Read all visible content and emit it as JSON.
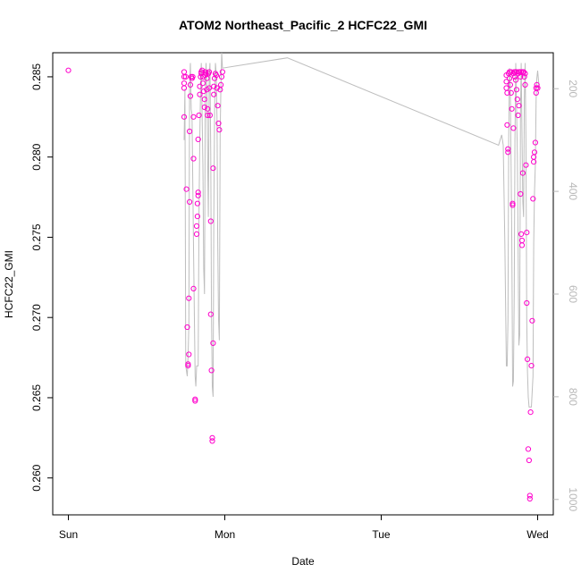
{
  "chart_data": {
    "type": "scatter",
    "title": "ATOM2 Northeast_Pacific_2 HCFC22_GMI",
    "xlabel": "Date",
    "ylabel": "HCFC22_GMI",
    "x_ticks": [
      {
        "label": "Sun",
        "value": 0
      },
      {
        "label": "Mon",
        "value": 1
      },
      {
        "label": "Tue",
        "value": 2
      },
      {
        "label": "Wed",
        "value": 3
      }
    ],
    "y_ticks": [
      0.26,
      0.265,
      0.27,
      0.275,
      0.28,
      0.285
    ],
    "y_tick_labels": [
      "0.260",
      "0.265",
      "0.270",
      "0.275",
      "0.280",
      "0.285"
    ],
    "right_ticks": [
      200,
      400,
      600,
      800,
      1000
    ],
    "right_tick_labels": [
      "200",
      "400",
      "600",
      "800",
      "1000"
    ],
    "xlim": [
      -0.1,
      3.1
    ],
    "ylim": [
      0.2577,
      0.2865
    ],
    "right_lim": [
      130,
      1030
    ],
    "points_color": "#ff00cc",
    "line_color": "#bebebe",
    "points": [
      [
        0.0,
        0.2854
      ],
      [
        0.74,
        0.2853
      ],
      [
        0.74,
        0.285
      ],
      [
        0.74,
        0.2846
      ],
      [
        0.74,
        0.2843
      ],
      [
        0.74,
        0.2825
      ],
      [
        0.75,
        0.285
      ],
      [
        0.755,
        0.278
      ],
      [
        0.76,
        0.2694
      ],
      [
        0.765,
        0.2671
      ],
      [
        0.765,
        0.267
      ],
      [
        0.77,
        0.2677
      ],
      [
        0.77,
        0.2712
      ],
      [
        0.775,
        0.2772
      ],
      [
        0.775,
        0.2816
      ],
      [
        0.78,
        0.2838
      ],
      [
        0.78,
        0.2845
      ],
      [
        0.785,
        0.285
      ],
      [
        0.79,
        0.2849
      ],
      [
        0.795,
        0.285
      ],
      [
        0.8,
        0.2825
      ],
      [
        0.8,
        0.2799
      ],
      [
        0.8,
        0.2718
      ],
      [
        0.81,
        0.2649
      ],
      [
        0.81,
        0.2648
      ],
      [
        0.82,
        0.2752
      ],
      [
        0.82,
        0.2757
      ],
      [
        0.825,
        0.2763
      ],
      [
        0.825,
        0.2771
      ],
      [
        0.83,
        0.2776
      ],
      [
        0.83,
        0.2778
      ],
      [
        0.83,
        0.2811
      ],
      [
        0.835,
        0.2826
      ],
      [
        0.84,
        0.2839
      ],
      [
        0.84,
        0.2844
      ],
      [
        0.845,
        0.285
      ],
      [
        0.85,
        0.2853
      ],
      [
        0.85,
        0.2852
      ],
      [
        0.855,
        0.2854
      ],
      [
        0.86,
        0.285
      ],
      [
        0.86,
        0.2846
      ],
      [
        0.865,
        0.2841
      ],
      [
        0.87,
        0.2836
      ],
      [
        0.87,
        0.2831
      ],
      [
        0.875,
        0.2853
      ],
      [
        0.875,
        0.2851
      ],
      [
        0.88,
        0.2852
      ],
      [
        0.885,
        0.2849
      ],
      [
        0.885,
        0.2842
      ],
      [
        0.89,
        0.283
      ],
      [
        0.89,
        0.2826
      ],
      [
        0.895,
        0.2852
      ],
      [
        0.9,
        0.2853
      ],
      [
        0.9,
        0.2843
      ],
      [
        0.905,
        0.2826
      ],
      [
        0.91,
        0.276
      ],
      [
        0.91,
        0.2702
      ],
      [
        0.915,
        0.2667
      ],
      [
        0.92,
        0.2623
      ],
      [
        0.92,
        0.2625
      ],
      [
        0.925,
        0.2684
      ],
      [
        0.925,
        0.2793
      ],
      [
        0.93,
        0.2839
      ],
      [
        0.93,
        0.2844
      ],
      [
        0.935,
        0.2849
      ],
      [
        0.94,
        0.2852
      ],
      [
        0.945,
        0.2851
      ],
      [
        0.95,
        0.2843
      ],
      [
        0.955,
        0.2832
      ],
      [
        0.96,
        0.2821
      ],
      [
        0.965,
        0.2817
      ],
      [
        0.97,
        0.2842
      ],
      [
        0.975,
        0.2845
      ],
      [
        0.98,
        0.285
      ],
      [
        0.985,
        0.2853
      ],
      [
        2.8,
        0.2851
      ],
      [
        2.8,
        0.2847
      ],
      [
        2.8,
        0.2843
      ],
      [
        2.805,
        0.284
      ],
      [
        2.805,
        0.282
      ],
      [
        2.81,
        0.2803
      ],
      [
        2.81,
        0.2805
      ],
      [
        2.815,
        0.2852
      ],
      [
        2.82,
        0.2849
      ],
      [
        2.825,
        0.2845
      ],
      [
        2.83,
        0.284
      ],
      [
        2.835,
        0.283
      ],
      [
        2.84,
        0.2771
      ],
      [
        2.84,
        0.277
      ],
      [
        2.845,
        0.2818
      ],
      [
        2.85,
        0.2853
      ],
      [
        2.855,
        0.285
      ],
      [
        2.86,
        0.2848
      ],
      [
        2.865,
        0.2842
      ],
      [
        2.87,
        0.2836
      ],
      [
        2.875,
        0.2826
      ],
      [
        2.88,
        0.2832
      ],
      [
        2.885,
        0.2853
      ],
      [
        2.89,
        0.285
      ],
      [
        2.89,
        0.2777
      ],
      [
        2.895,
        0.2752
      ],
      [
        2.9,
        0.2748
      ],
      [
        2.9,
        0.2745
      ],
      [
        2.905,
        0.279
      ],
      [
        2.91,
        0.2853
      ],
      [
        2.915,
        0.285
      ],
      [
        2.92,
        0.2845
      ],
      [
        2.925,
        0.2795
      ],
      [
        2.93,
        0.2753
      ],
      [
        2.93,
        0.2709
      ],
      [
        2.935,
        0.2674
      ],
      [
        2.94,
        0.2618
      ],
      [
        2.945,
        0.2611
      ],
      [
        2.95,
        0.2589
      ],
      [
        2.95,
        0.2587
      ],
      [
        2.955,
        0.2641
      ],
      [
        2.96,
        0.267
      ],
      [
        2.965,
        0.2698
      ],
      [
        2.97,
        0.2774
      ],
      [
        2.975,
        0.2797
      ],
      [
        2.975,
        0.28
      ],
      [
        2.98,
        0.2803
      ],
      [
        2.985,
        0.2809
      ],
      [
        2.99,
        0.284
      ],
      [
        2.99,
        0.2843
      ],
      [
        2.995,
        0.2845
      ],
      [
        3.0,
        0.2843
      ],
      [
        2.82,
        0.2853
      ],
      [
        2.83,
        0.2853
      ],
      [
        2.845,
        0.2852
      ],
      [
        2.855,
        0.2853
      ],
      [
        2.865,
        0.2853
      ],
      [
        2.875,
        0.2852
      ],
      [
        2.88,
        0.2853
      ],
      [
        2.895,
        0.2853
      ],
      [
        2.905,
        0.2853
      ],
      [
        2.92,
        0.2852
      ]
    ],
    "line": [
      [
        0.74,
        300
      ],
      [
        0.745,
        200
      ],
      [
        0.75,
        740
      ],
      [
        0.76,
        760
      ],
      [
        0.765,
        720
      ],
      [
        0.77,
        660
      ],
      [
        0.775,
        200
      ],
      [
        0.78,
        150
      ],
      [
        0.785,
        240
      ],
      [
        0.79,
        250
      ],
      [
        0.8,
        510
      ],
      [
        0.81,
        760
      ],
      [
        0.815,
        780
      ],
      [
        0.82,
        740
      ],
      [
        0.83,
        740
      ],
      [
        0.835,
        450
      ],
      [
        0.84,
        300
      ],
      [
        0.845,
        200
      ],
      [
        0.85,
        150
      ],
      [
        0.86,
        350
      ],
      [
        0.865,
        550
      ],
      [
        0.87,
        600
      ],
      [
        0.875,
        220
      ],
      [
        0.88,
        150
      ],
      [
        0.885,
        200
      ],
      [
        0.89,
        320
      ],
      [
        0.895,
        450
      ],
      [
        0.9,
        180
      ],
      [
        0.905,
        150
      ],
      [
        0.91,
        330
      ],
      [
        0.915,
        640
      ],
      [
        0.92,
        780
      ],
      [
        0.925,
        800
      ],
      [
        0.93,
        450
      ],
      [
        0.935,
        240
      ],
      [
        0.94,
        150
      ],
      [
        0.945,
        170
      ],
      [
        0.95,
        260
      ],
      [
        0.955,
        500
      ],
      [
        0.96,
        650
      ],
      [
        0.965,
        690
      ],
      [
        0.97,
        290
      ],
      [
        0.975,
        200
      ],
      [
        0.98,
        130
      ],
      [
        0.985,
        160
      ],
      [
        1.4,
        140
      ],
      [
        2.75,
        310
      ],
      [
        2.76,
        300
      ],
      [
        2.77,
        290
      ],
      [
        2.78,
        310
      ],
      [
        2.79,
        500
      ],
      [
        2.8,
        740
      ],
      [
        2.805,
        740
      ],
      [
        2.81,
        650
      ],
      [
        2.815,
        300
      ],
      [
        2.82,
        160
      ],
      [
        2.825,
        200
      ],
      [
        2.83,
        350
      ],
      [
        2.835,
        500
      ],
      [
        2.84,
        780
      ],
      [
        2.845,
        770
      ],
      [
        2.85,
        600
      ],
      [
        2.855,
        300
      ],
      [
        2.86,
        150
      ],
      [
        2.865,
        240
      ],
      [
        2.87,
        330
      ],
      [
        2.875,
        500
      ],
      [
        2.88,
        700
      ],
      [
        2.885,
        680
      ],
      [
        2.89,
        250
      ],
      [
        2.895,
        150
      ],
      [
        2.9,
        290
      ],
      [
        2.905,
        420
      ],
      [
        2.91,
        450
      ],
      [
        2.915,
        220
      ],
      [
        2.92,
        150
      ],
      [
        2.925,
        300
      ],
      [
        2.93,
        650
      ],
      [
        2.935,
        750
      ],
      [
        2.94,
        800
      ],
      [
        2.945,
        820
      ],
      [
        2.95,
        820
      ],
      [
        2.96,
        820
      ],
      [
        2.97,
        760
      ],
      [
        2.975,
        500
      ],
      [
        2.98,
        400
      ],
      [
        2.985,
        350
      ],
      [
        2.99,
        220
      ],
      [
        2.995,
        180
      ],
      [
        3.0,
        165
      ],
      [
        3.01,
        200
      ]
    ]
  }
}
